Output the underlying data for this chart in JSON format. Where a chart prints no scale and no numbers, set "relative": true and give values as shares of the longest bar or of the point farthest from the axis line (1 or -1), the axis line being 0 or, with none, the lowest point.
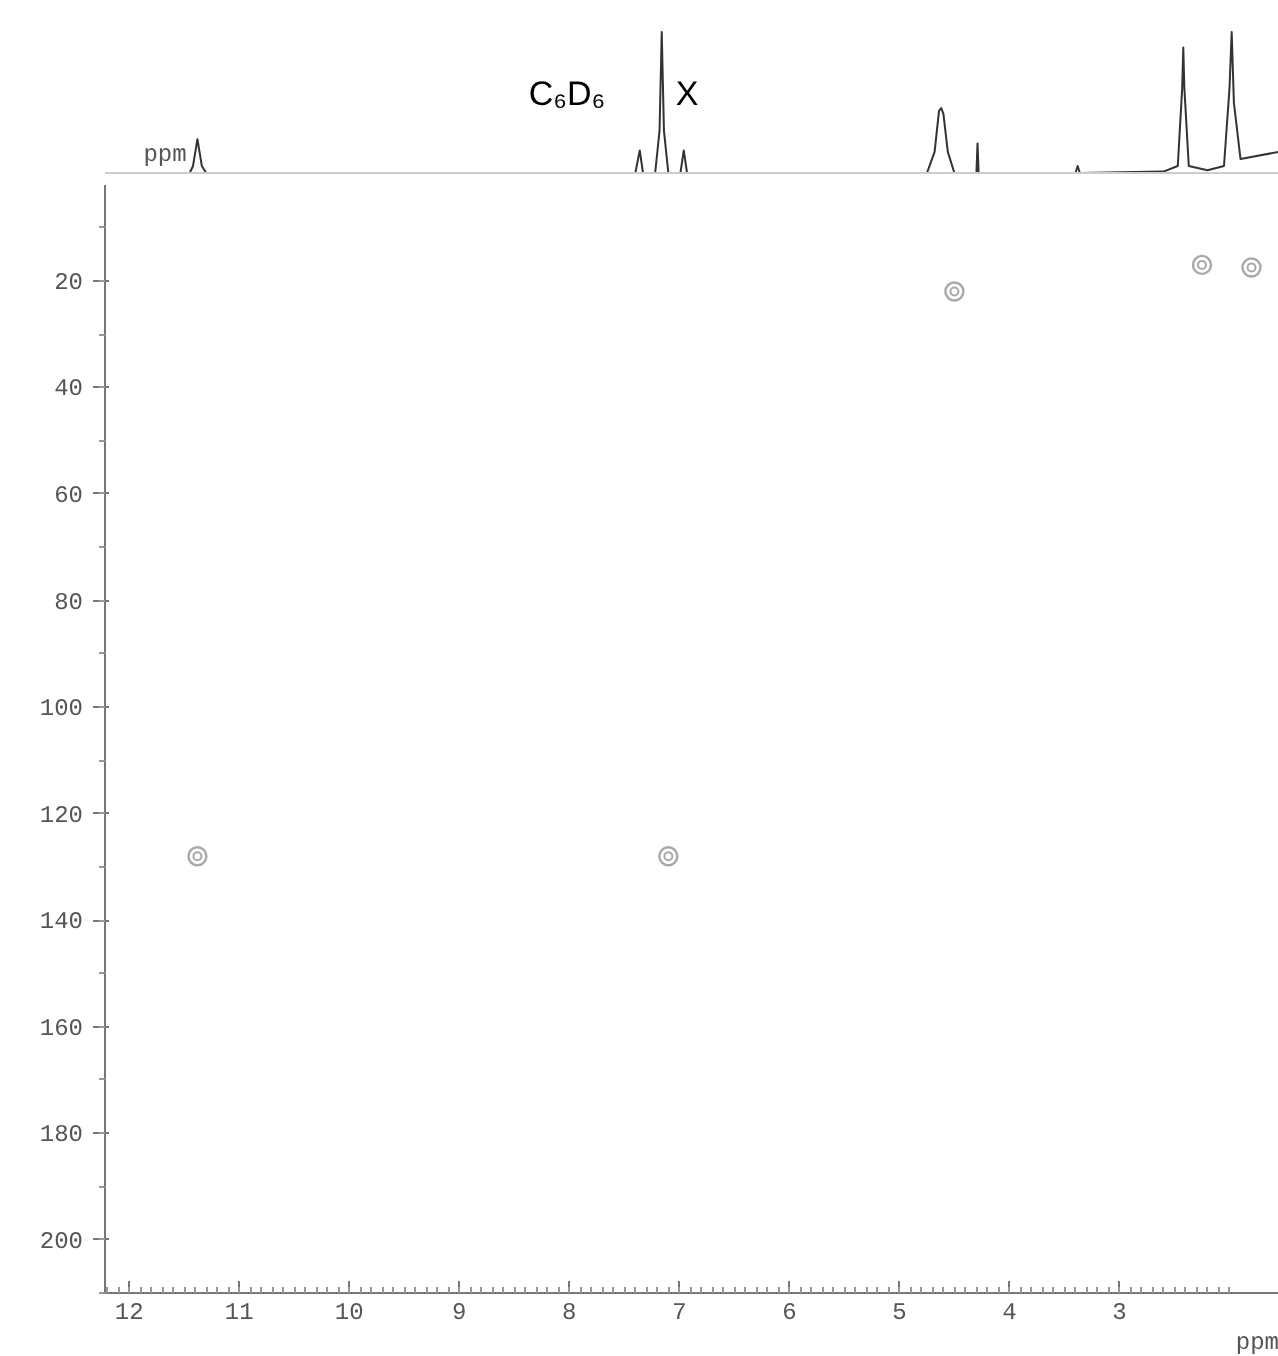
{
  "chart_data": [
    {
      "type": "line",
      "relative": true,
      "ylabel": "ppm",
      "color": "#333333",
      "xlim": [
        12.22,
        1.55
      ],
      "tick_labels": false,
      "grid": false,
      "marker": "none",
      "line_style": "solid",
      "x": [
        12.2,
        11.45,
        11.42,
        11.38,
        11.34,
        11.3,
        7.4,
        7.36,
        7.33,
        7.22,
        7.18,
        7.16,
        7.14,
        7.1,
        6.99,
        6.96,
        6.93,
        4.75,
        4.68,
        4.64,
        4.62,
        4.6,
        4.56,
        4.5,
        4.3,
        4.29,
        4.28,
        3.4,
        3.38,
        3.36,
        2.6,
        2.47,
        2.43,
        2.42,
        2.41,
        2.37,
        2.2,
        2.05,
        2.0,
        1.98,
        1.96,
        1.9,
        1.55
      ],
      "values": [
        0,
        0,
        0.05,
        0.24,
        0.05,
        0,
        0,
        0.16,
        0,
        0,
        0.3,
        1.0,
        0.3,
        0,
        0,
        0.16,
        0,
        0,
        0.15,
        0.44,
        0.46,
        0.42,
        0.15,
        0,
        0,
        0.21,
        0,
        0,
        0.05,
        0,
        0.01,
        0.05,
        0.6,
        0.89,
        0.6,
        0.05,
        0.02,
        0.05,
        0.6,
        1.0,
        0.5,
        0.1,
        0.15
      ],
      "annotations": [
        "C₆D₆",
        "X"
      ]
    },
    {
      "type": "scatter",
      "xlabel": "ppm",
      "color": "#a8a8a8",
      "marker": "circle",
      "grid": false,
      "xlim": [
        12.22,
        1.55
      ],
      "ylim": [
        210,
        2
      ],
      "xticks": [
        12,
        11,
        10,
        9,
        8,
        7,
        6,
        5,
        4,
        3
      ],
      "yticks": [
        20,
        40,
        60,
        80,
        100,
        120,
        140,
        160,
        180,
        200
      ],
      "x": [
        11.38,
        7.1,
        4.5,
        2.25,
        1.8
      ],
      "values": [
        128,
        128,
        22,
        17,
        17.5
      ]
    }
  ]
}
